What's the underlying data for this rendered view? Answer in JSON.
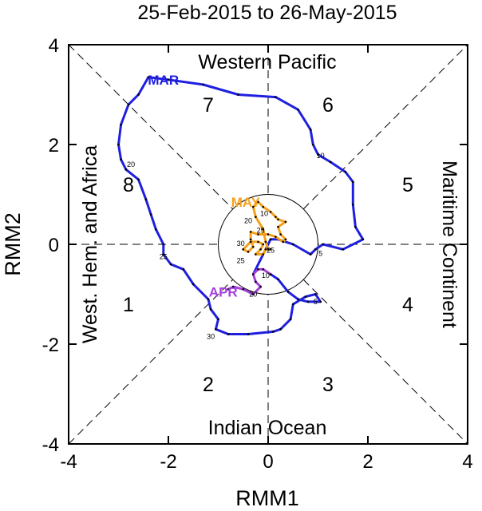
{
  "chart_data": {
    "type": "line",
    "title": "25-Feb-2015 to 26-May-2015",
    "xlabel": "RMM1",
    "ylabel": "RMM2",
    "xlim": [
      -4,
      4
    ],
    "ylim": [
      -4,
      4
    ],
    "xticks": [
      "-4",
      "-2",
      "0",
      "2",
      "4"
    ],
    "yticks": [
      "-4",
      "-2",
      "0",
      "2",
      "4"
    ],
    "regions": {
      "top": "Western Pacific",
      "bottom": "Indian Ocean",
      "left": "West. Hem. and Africa",
      "right": "Maritime Continent"
    },
    "phases": [
      {
        "label": "1",
        "x": -2.8,
        "y": -1.2
      },
      {
        "label": "2",
        "x": -1.2,
        "y": -2.8
      },
      {
        "label": "3",
        "x": 1.2,
        "y": -2.8
      },
      {
        "label": "4",
        "x": 2.8,
        "y": -1.2
      },
      {
        "label": "5",
        "x": 2.8,
        "y": 1.2
      },
      {
        "label": "6",
        "x": 1.2,
        "y": 2.8
      },
      {
        "label": "7",
        "x": -1.2,
        "y": 2.8
      },
      {
        "label": "8",
        "x": -2.8,
        "y": 1.2
      }
    ],
    "unit_circle_radius": 1,
    "series": [
      {
        "name": "MAR",
        "color": "#1f1fe0",
        "label_at": [
          -2.1,
          3.3
        ],
        "points": [
          [
            -0.3,
            -0.6
          ],
          [
            0.05,
            0.1
          ],
          [
            0.2,
            0.1
          ],
          [
            0.5,
            0.0
          ],
          [
            0.85,
            -0.2
          ],
          [
            0.95,
            -0.1
          ],
          [
            1.1,
            0.0
          ],
          [
            1.5,
            -0.1
          ],
          [
            1.9,
            0.1
          ],
          [
            1.75,
            0.35
          ],
          [
            1.7,
            0.8
          ],
          [
            1.7,
            1.25
          ],
          [
            1.55,
            1.45
          ],
          [
            1.25,
            1.65
          ],
          [
            1.0,
            1.8
          ],
          [
            0.9,
            2.0
          ],
          [
            0.85,
            2.3
          ],
          [
            0.6,
            2.7
          ],
          [
            0.15,
            2.95
          ],
          [
            -0.6,
            3.0
          ],
          [
            -1.3,
            3.2
          ],
          [
            -2.0,
            3.3
          ],
          [
            -2.4,
            3.35
          ],
          [
            -2.6,
            3.0
          ],
          [
            -2.8,
            2.8
          ],
          [
            -2.95,
            2.4
          ],
          [
            -3.0,
            2.0
          ],
          [
            -2.95,
            1.7
          ],
          [
            -2.85,
            1.5
          ],
          [
            -2.6,
            1.3
          ],
          [
            -2.45,
            0.9
          ],
          [
            -2.35,
            0.6
          ],
          [
            -2.25,
            0.3
          ],
          [
            -2.1,
            0.0
          ],
          [
            -2.1,
            -0.2
          ],
          [
            -1.95,
            -0.4
          ],
          [
            -1.7,
            -0.5
          ],
          [
            -1.5,
            -0.8
          ],
          [
            -1.2,
            -1.1
          ],
          [
            -1.15,
            -1.3
          ],
          [
            -1.0,
            -1.5
          ],
          [
            -1.05,
            -1.7
          ],
          [
            -0.8,
            -1.8
          ],
          [
            -0.4,
            -1.8
          ],
          [
            0.1,
            -1.75
          ],
          [
            0.25,
            -1.7
          ],
          [
            0.45,
            -1.5
          ],
          [
            0.5,
            -1.2
          ],
          [
            0.75,
            -1.05
          ],
          [
            0.95,
            -1.0
          ],
          [
            1.05,
            -1.15
          ],
          [
            0.8,
            -1.15
          ],
          [
            0.6,
            -1.1
          ],
          [
            0.4,
            -0.95
          ],
          [
            0.2,
            -0.7
          ],
          [
            0.05,
            -0.6
          ]
        ]
      },
      {
        "name": "APR",
        "color": "#a63fdd",
        "label_at": [
          -0.9,
          -0.95
        ],
        "points": [
          [
            0.05,
            -0.6
          ],
          [
            -0.1,
            -0.5
          ],
          [
            -0.2,
            -0.5
          ],
          [
            -0.3,
            -0.6
          ],
          [
            -0.25,
            -0.75
          ],
          [
            -0.15,
            -0.85
          ],
          [
            -0.3,
            -1.0
          ],
          [
            -0.5,
            -0.9
          ],
          [
            -0.7,
            -0.85
          ],
          [
            -0.8,
            -0.9
          ]
        ]
      },
      {
        "name": "MAY",
        "color": "#f5a01a",
        "label_at": [
          -0.45,
          0.85
        ],
        "points": [
          [
            0.0,
            -0.1
          ],
          [
            -0.05,
            0.05
          ],
          [
            -0.1,
            0.3
          ],
          [
            -0.25,
            0.55
          ],
          [
            -0.3,
            0.75
          ],
          [
            -0.2,
            0.85
          ],
          [
            -0.1,
            0.75
          ],
          [
            0.05,
            0.65
          ],
          [
            0.15,
            0.55
          ],
          [
            0.2,
            0.5
          ],
          [
            0.35,
            0.45
          ],
          [
            0.2,
            0.35
          ],
          [
            0.25,
            0.2
          ],
          [
            0.35,
            0.1
          ],
          [
            0.3,
            0.05
          ],
          [
            0.15,
            0.15
          ],
          [
            0.0,
            0.2
          ],
          [
            -0.2,
            0.2
          ],
          [
            -0.35,
            0.25
          ],
          [
            -0.35,
            0.1
          ],
          [
            -0.3,
            -0.05
          ],
          [
            -0.4,
            -0.15
          ],
          [
            -0.5,
            -0.1
          ],
          [
            -0.35,
            0.05
          ],
          [
            -0.2,
            0.05
          ],
          [
            -0.1,
            0.0
          ],
          [
            -0.15,
            -0.1
          ],
          [
            -0.25,
            -0.2
          ],
          [
            -0.1,
            -0.2
          ],
          [
            -0.05,
            -0.1
          ],
          [
            0.05,
            -0.1
          ]
        ]
      }
    ],
    "day_labels": [
      {
        "text": "5",
        "x": 1.05,
        "y": -0.18,
        "color": "#1f1fe0"
      },
      {
        "text": "10",
        "x": 1.05,
        "y": 1.78,
        "color": "#1f1fe0"
      },
      {
        "text": "20",
        "x": -2.75,
        "y": 1.6,
        "color": "#1f1fe0"
      },
      {
        "text": "25",
        "x": -2.1,
        "y": -0.25,
        "color": "#1f1fe0"
      },
      {
        "text": "30",
        "x": -1.15,
        "y": -1.85,
        "color": "#1f1fe0"
      },
      {
        "text": "5",
        "x": 0.95,
        "y": -1.15,
        "color": "#1f1fe0"
      },
      {
        "text": "10",
        "x": -0.05,
        "y": -0.62,
        "color": "#a63fdd"
      },
      {
        "text": "20",
        "x": -0.3,
        "y": -1.0,
        "color": "#a63fdd"
      },
      {
        "text": "25",
        "x": 0.05,
        "y": -0.12,
        "color": "#a63fdd"
      },
      {
        "text": "10",
        "x": -0.08,
        "y": 0.62,
        "color": "#f5a01a"
      },
      {
        "text": "20",
        "x": -0.4,
        "y": 0.47,
        "color": "#f5a01a"
      },
      {
        "text": "25",
        "x": -0.15,
        "y": 0.28,
        "color": "#f5a01a"
      },
      {
        "text": "30",
        "x": -0.55,
        "y": 0.02,
        "color": "#f5a01a"
      },
      {
        "text": "25",
        "x": -0.55,
        "y": -0.33,
        "color": "#f5a01a"
      }
    ]
  }
}
